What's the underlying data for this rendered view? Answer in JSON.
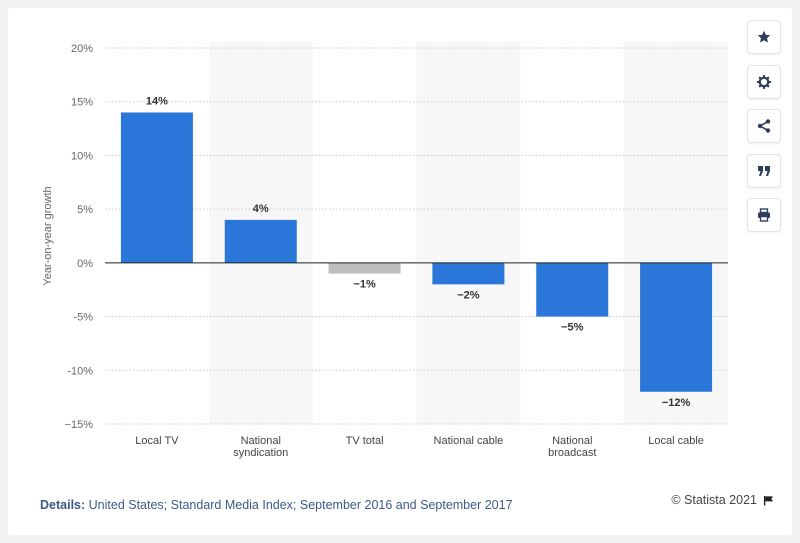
{
  "chart_data": {
    "type": "bar",
    "categories": [
      "Local TV",
      "National syndication",
      "TV total",
      "National cable",
      "National broadcast",
      "Local cable"
    ],
    "category_lines": [
      [
        "Local TV"
      ],
      [
        "National",
        "syndication"
      ],
      [
        "TV total"
      ],
      [
        "National cable"
      ],
      [
        "National",
        "broadcast"
      ],
      [
        "Local cable"
      ]
    ],
    "values": [
      14,
      4,
      -1,
      -2,
      -5,
      -12
    ],
    "data_labels": [
      "14%",
      "4%",
      "−1%",
      "−2%",
      "−5%",
      "−12%"
    ],
    "ylabel": "Year-on-year growth",
    "ylim": [
      -15,
      20
    ],
    "yticks": [
      20,
      15,
      10,
      5,
      0,
      -5,
      -10,
      -15
    ],
    "ytick_labels": [
      "20%",
      "15%",
      "10%",
      "5%",
      "0%",
      "-5%",
      "-10%",
      "−15%"
    ],
    "grid": true,
    "colors": {
      "bar": "#2a77d9",
      "highlight_bar": "#bdbdbd",
      "band": "#f7f7f7"
    },
    "highlight_category": "TV total"
  },
  "toolbar": {
    "items": [
      {
        "name": "star-icon",
        "label": "favorite"
      },
      {
        "name": "gear-icon",
        "label": "settings"
      },
      {
        "name": "share-icon",
        "label": "share"
      },
      {
        "name": "quote-icon",
        "label": "cite"
      },
      {
        "name": "print-icon",
        "label": "print"
      }
    ]
  },
  "footer": {
    "details_label": "Details:",
    "details_text": "United States; Standard Media Index; September 2016 and September 2017",
    "credit": "© Statista 2021",
    "flag_icon": "flag-icon"
  }
}
